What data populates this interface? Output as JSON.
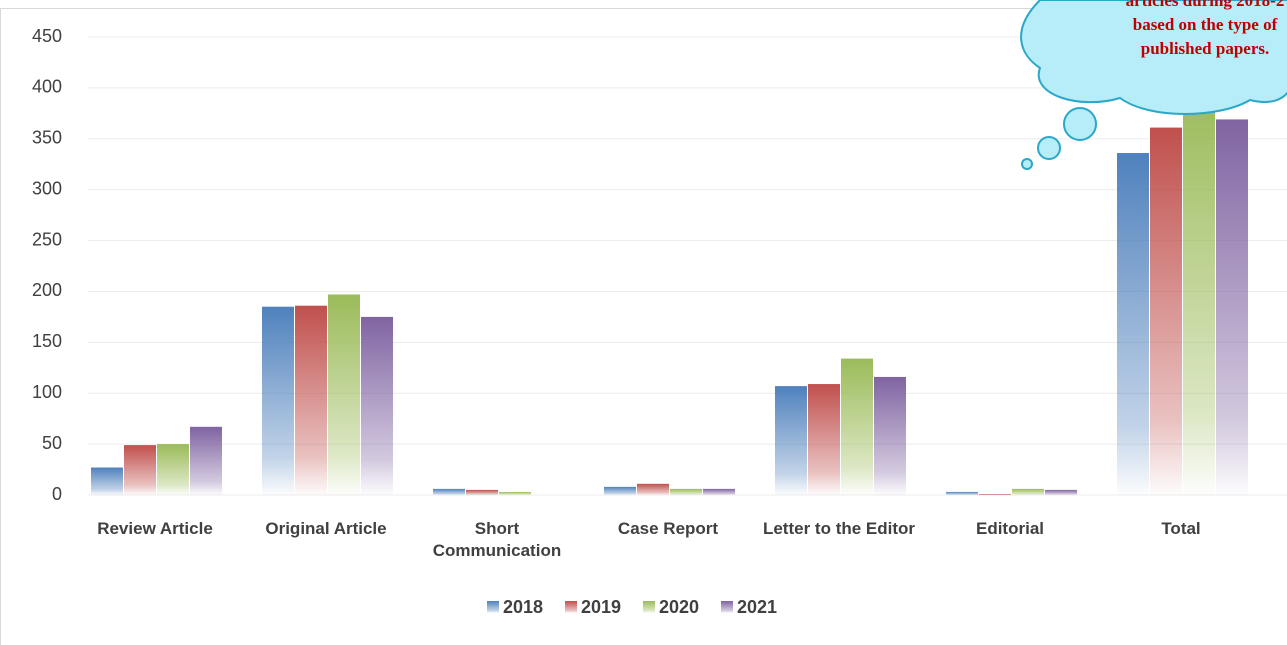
{
  "chart_data": {
    "type": "bar",
    "categories": [
      "Review Article",
      "Original Article",
      "Short Communication",
      "Case Report",
      "Letter to the Editor",
      "Editorial",
      "Total"
    ],
    "series": [
      {
        "name": "2018",
        "color": "#4f81bd",
        "values": [
          27,
          185,
          6,
          8,
          107,
          3,
          336
        ]
      },
      {
        "name": "2019",
        "color": "#c0504d",
        "values": [
          49,
          186,
          5,
          11,
          109,
          1,
          361
        ]
      },
      {
        "name": "2020",
        "color": "#9bbb59",
        "values": [
          50,
          197,
          3,
          6,
          134,
          6,
          396
        ]
      },
      {
        "name": "2021",
        "color": "#8064a2",
        "values": [
          67,
          175,
          0,
          6,
          116,
          5,
          369
        ]
      }
    ],
    "ylim": [
      0,
      450
    ],
    "yticks": [
      0,
      50,
      100,
      150,
      200,
      250,
      300,
      350,
      400,
      450
    ],
    "grid": true,
    "legend": "bottom",
    "annotation": [
      "articles during 2018-2",
      "based on the type of",
      "published papers."
    ]
  }
}
